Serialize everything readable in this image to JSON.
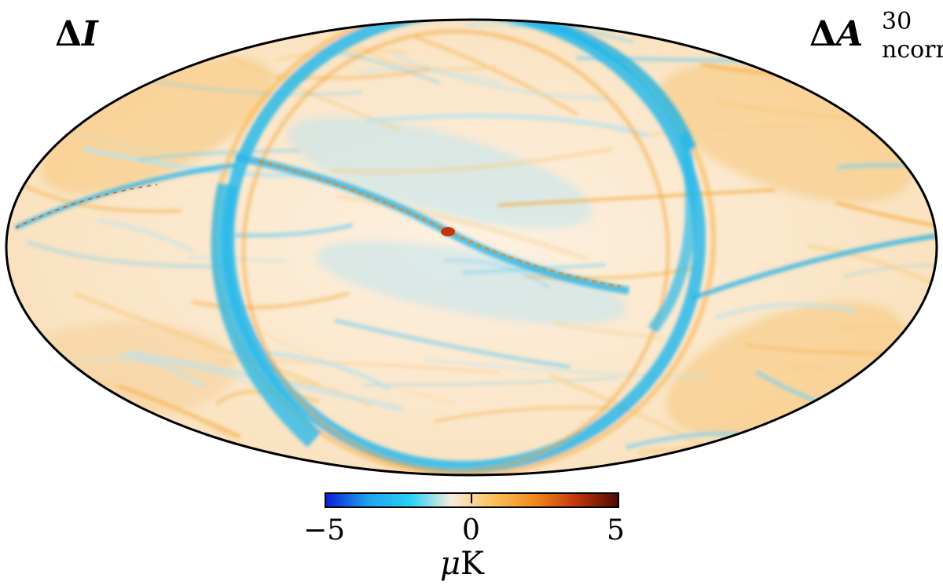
{
  "labels": {
    "left_delta": "Δ",
    "left_symbol": "I",
    "right_delta": "Δ",
    "right_symbol": "A",
    "right_superscript": "30",
    "right_subscript": "ncorr"
  },
  "colorbar": {
    "min": -5,
    "max": 5,
    "ticks": [
      "−5",
      "0",
      "5"
    ],
    "unit_prefix": "μ",
    "unit_suffix": "K",
    "stops": [
      "#0a1fd8",
      "#1fa2ee",
      "#26d0f5",
      "#f4ecdf",
      "#fbc25c",
      "#f08a1c",
      "#c2360c",
      "#4e0c05"
    ]
  },
  "map": {
    "projection": "mollweide",
    "background_color": "#fbe9d2",
    "positive_color": "#f6b44a",
    "negative_color": "#2db9e8"
  }
}
